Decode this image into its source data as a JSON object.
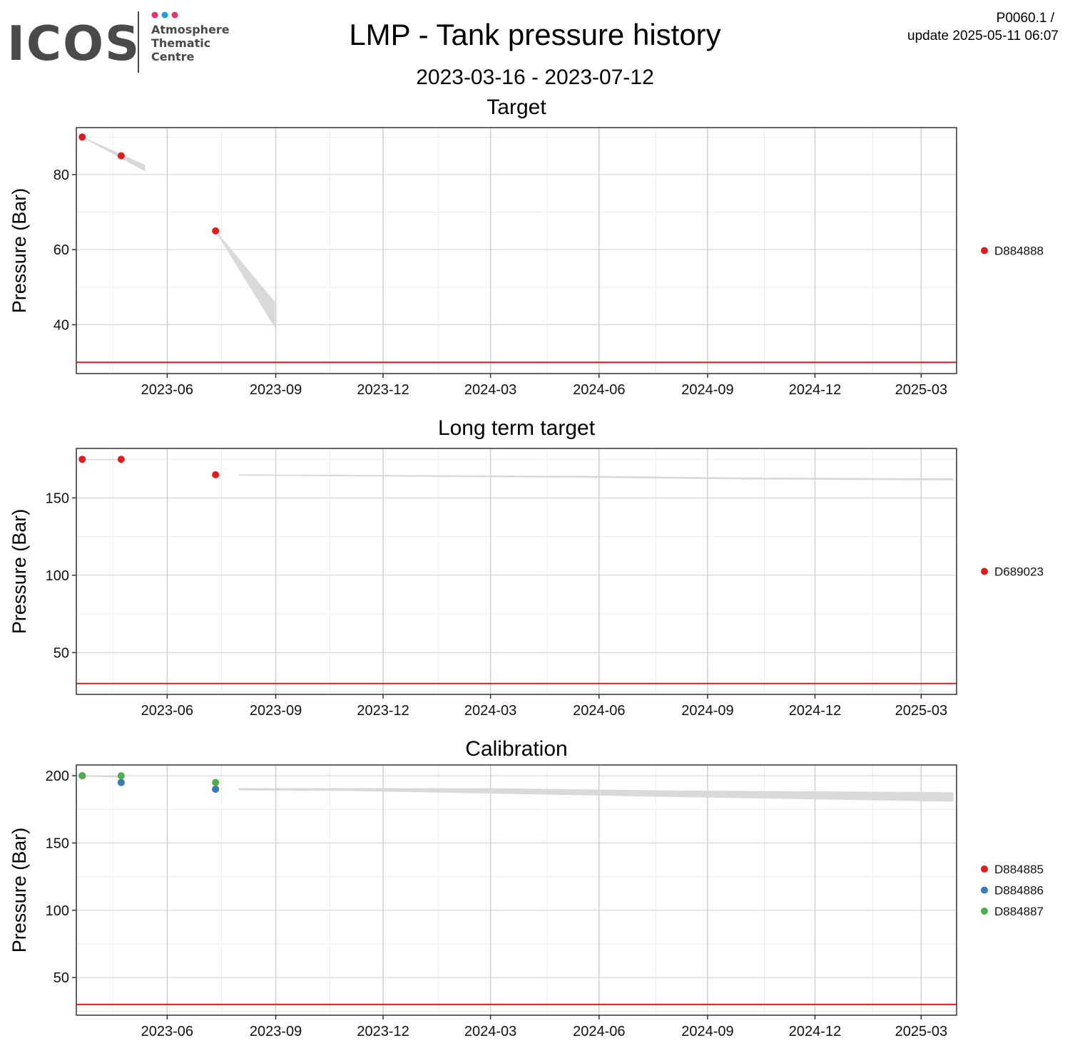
{
  "header": {
    "logo": {
      "wordmark": "ICOS",
      "sub_lines": [
        "Atmosphere",
        "Thematic",
        "Centre"
      ],
      "dot_colors": [
        "#e8336b",
        "#1aa0e0",
        "#e8336b"
      ]
    },
    "title": "LMP - Tank pressure history",
    "subtitle": "2023-03-16 - 2023-07-12",
    "ref_line1": "P0060.1 /",
    "ref_line2": "update  2025-05-11 06:07"
  },
  "colors": {
    "threshold": "#e41a1c",
    "ribbon": "#d9d9d9",
    "grid_major": "#cfcfcf",
    "grid_minor": "#ececec"
  },
  "chart_data": [
    {
      "type": "scatter",
      "title": "Target",
      "ylabel": "Pressure (Bar)",
      "xlabel": "",
      "x_range": [
        "2023-03-16",
        "2025-03-31"
      ],
      "x_ticks": [
        "2023-06",
        "2023-09",
        "2023-12",
        "2024-03",
        "2024-06",
        "2024-09",
        "2024-12",
        "2025-03"
      ],
      "ylim": [
        27,
        92.5
      ],
      "y_ticks": [
        40,
        60,
        80
      ],
      "grid": true,
      "threshold": 30,
      "legend_position": "right",
      "series": [
        {
          "name": "D884888",
          "color": "#e41a1c",
          "points": [
            [
              "2023-03-21",
              90
            ],
            [
              "2023-04-23",
              85
            ],
            [
              "2023-07-12",
              65
            ]
          ]
        }
      ],
      "ribbons": [
        {
          "upper": [
            [
              "2023-03-21",
              90
            ],
            [
              "2023-05-13",
              82.5
            ]
          ],
          "lower": [
            [
              "2023-03-21",
              90
            ],
            [
              "2023-05-13",
              81
            ]
          ]
        },
        {
          "upper": [
            [
              "2023-07-12",
              65
            ],
            [
              "2023-08-31",
              46
            ]
          ],
          "lower": [
            [
              "2023-07-12",
              65
            ],
            [
              "2023-08-31",
              39.5
            ]
          ]
        }
      ]
    },
    {
      "type": "scatter",
      "title": "Long term target",
      "ylabel": "Pressure (Bar)",
      "xlabel": "",
      "x_range": [
        "2023-03-16",
        "2025-03-31"
      ],
      "x_ticks": [
        "2023-06",
        "2023-09",
        "2023-12",
        "2024-03",
        "2024-06",
        "2024-09",
        "2024-12",
        "2025-03"
      ],
      "ylim": [
        23,
        182
      ],
      "y_ticks": [
        50,
        100,
        150
      ],
      "grid": true,
      "threshold": 30,
      "legend_position": "right",
      "series": [
        {
          "name": "D689023",
          "color": "#e41a1c",
          "points": [
            [
              "2023-03-21",
              175
            ],
            [
              "2023-04-23",
              175
            ],
            [
              "2023-07-12",
              165
            ]
          ]
        }
      ],
      "ribbons": [
        {
          "upper": [
            [
              "2023-03-21",
              175
            ],
            [
              "2023-04-20",
              175
            ]
          ],
          "lower": [
            [
              "2023-03-21",
              174.6
            ],
            [
              "2023-04-20",
              174.6
            ]
          ]
        },
        {
          "upper": [
            [
              "2023-08-01",
              165
            ],
            [
              "2024-06-01",
              164
            ],
            [
              "2024-10-01",
              163
            ],
            [
              "2025-03-28",
              162.4
            ]
          ],
          "lower": [
            [
              "2023-08-01",
              164.6
            ],
            [
              "2024-06-01",
              163.2
            ],
            [
              "2024-10-01",
              162.2
            ],
            [
              "2025-03-28",
              161.6
            ]
          ]
        }
      ]
    },
    {
      "type": "scatter",
      "title": "Calibration",
      "ylabel": "Pressure (Bar)",
      "xlabel": "",
      "x_range": [
        "2023-03-16",
        "2025-03-31"
      ],
      "x_ticks": [
        "2023-06",
        "2023-09",
        "2023-12",
        "2024-03",
        "2024-06",
        "2024-09",
        "2024-12",
        "2025-03"
      ],
      "ylim": [
        22,
        208
      ],
      "y_ticks": [
        50,
        100,
        150,
        200
      ],
      "grid": true,
      "threshold": 30,
      "legend_position": "right",
      "series": [
        {
          "name": "D884885",
          "color": "#e41a1c",
          "points": [
            [
              "2023-03-21",
              200
            ],
            [
              "2023-04-23",
              195
            ],
            [
              "2023-07-12",
              190
            ]
          ]
        },
        {
          "name": "D884886",
          "color": "#377eb8",
          "points": [
            [
              "2023-03-21",
              200
            ],
            [
              "2023-04-23",
              195
            ],
            [
              "2023-07-12",
              190
            ]
          ]
        },
        {
          "name": "D884887",
          "color": "#4daf4a",
          "points": [
            [
              "2023-03-21",
              200
            ],
            [
              "2023-04-23",
              200
            ],
            [
              "2023-07-12",
              195
            ]
          ]
        }
      ],
      "ribbons": [
        {
          "upper": [
            [
              "2023-03-21",
              200.2
            ],
            [
              "2023-04-20",
              199.6
            ]
          ],
          "lower": [
            [
              "2023-03-21",
              199.6
            ],
            [
              "2023-04-20",
              199.0
            ]
          ]
        },
        {
          "upper": [
            [
              "2023-08-01",
              190.5
            ],
            [
              "2023-11-01",
              190.5
            ],
            [
              "2024-03-01",
              190.5
            ],
            [
              "2024-08-01",
              188.8
            ],
            [
              "2025-03-28",
              187.5
            ]
          ],
          "lower": [
            [
              "2023-08-01",
              189.4
            ],
            [
              "2023-11-01",
              189.0
            ],
            [
              "2024-03-01",
              187.0
            ],
            [
              "2024-08-01",
              184.5
            ],
            [
              "2025-03-28",
              181.0
            ]
          ]
        }
      ]
    }
  ]
}
